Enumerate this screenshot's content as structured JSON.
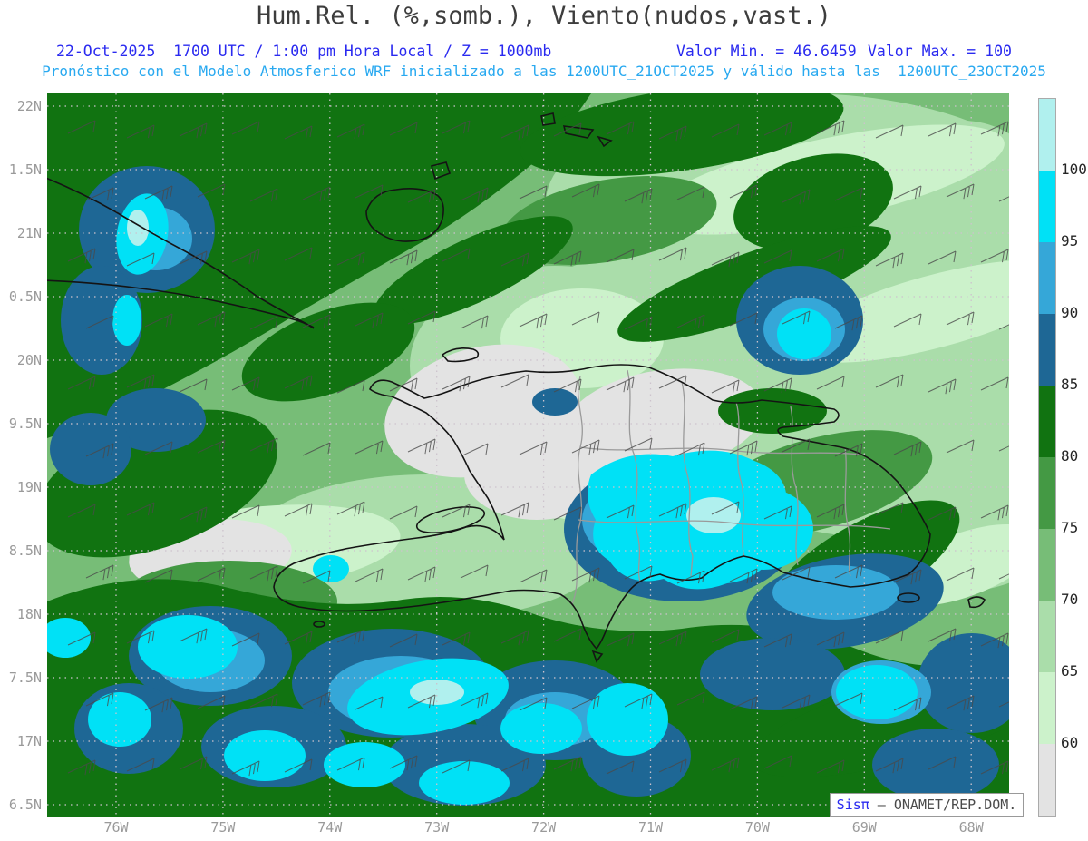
{
  "header": {
    "title": "Hum.Rel. (%,somb.), Viento(nudos,vast.)",
    "info": {
      "datetime": "22-Oct-2025  1700 UTC / 1:00 pm Hora Local / Z = 1000mb",
      "valor_min": "Valor Min. = 46.6459",
      "valor_max": "Valor Max. = 100"
    },
    "model_line": "Pronóstico con el Modelo Atmosferico WRF inicializado a las 1200UTC_21OCT2025 y válido hasta las  1200UTC_23OCT2025"
  },
  "axes": {
    "lat": [
      "22N",
      "1.5N",
      "21N",
      "0.5N",
      "20N",
      "9.5N",
      "19N",
      "8.5N",
      "18N",
      "7.5N",
      "17N",
      "6.5N"
    ],
    "lon": [
      "76W",
      "75W",
      "74W",
      "73W",
      "72W",
      "71W",
      "70W",
      "69W",
      "68W"
    ]
  },
  "colorbar": {
    "ticks": [
      "100",
      "95",
      "90",
      "85",
      "80",
      "75",
      "70",
      "65",
      "60"
    ],
    "colors": [
      "#b0f0ee",
      "#00e1f6",
      "#35a7d8",
      "#1e6795",
      "#117311",
      "#449944",
      "#77bd77",
      "#aaddaa",
      "#ccf2cb",
      "#e3e3e3"
    ]
  },
  "watermark": {
    "brand": "Sisπ",
    "rest": " – ONAMET/REP.DOM."
  },
  "palette": {
    "rh_gt100": "#b0f0ee",
    "rh_95_100": "#00e1f6",
    "rh_90_95": "#35a7d8",
    "rh_85_90": "#1e6795",
    "rh_80_85": "#117311",
    "rh_75_80": "#449944",
    "rh_70_75": "#77bd77",
    "rh_65_70": "#aaddaa",
    "rh_60_65": "#ccf2cb",
    "rh_lt60": "#e3e3e3",
    "coastline": "#141414",
    "province_border": "#9a9a9a",
    "gridline": "#cdc3cd",
    "wind_barb": "#4a4a4a",
    "title_color": "#3d3d3d",
    "info_color": "#2a2af0",
    "model_color": "#29a9f0",
    "axis_label_color": "#9a9a9a"
  }
}
